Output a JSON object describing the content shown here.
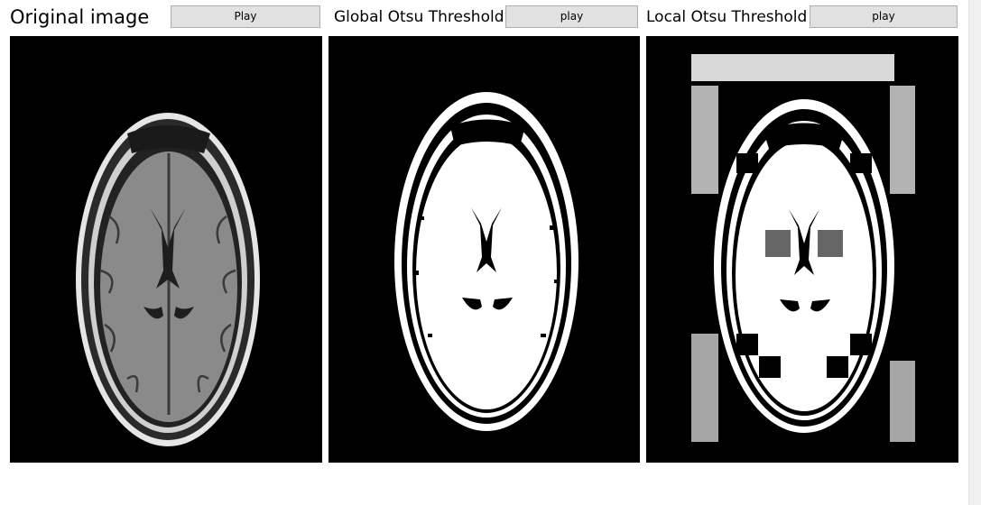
{
  "panels": [
    {
      "title": "Original image",
      "button_label": "Play",
      "icon": "mri-brain-image"
    },
    {
      "title": "Global Otsu Threshold",
      "button_label": "play",
      "icon": "otsu-global-image"
    },
    {
      "title": "Local Otsu Threshold",
      "button_label": "play",
      "icon": "otsu-local-image"
    }
  ],
  "colors": {
    "background": "#ffffff",
    "button_face": "#e1e1e1",
    "image_background": "#000000"
  }
}
